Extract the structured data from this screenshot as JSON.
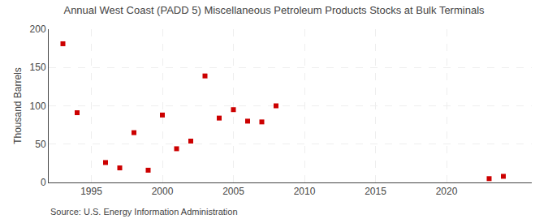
{
  "chart_data": {
    "type": "scatter",
    "title": "Annual West Coast (PADD 5) Miscellaneous Petroleum Products Stocks at Bulk Terminals",
    "ylabel": "Thousand Barrels",
    "annotations": [
      "Source: U.S. Energy Information Administration"
    ],
    "x": [
      1993,
      1994,
      1996,
      1997,
      1998,
      1999,
      2000,
      2001,
      2002,
      2003,
      2004,
      2005,
      2006,
      2007,
      2008,
      2023,
      2024
    ],
    "values": [
      181,
      91,
      26,
      19,
      65,
      16,
      88,
      44,
      54,
      139,
      84,
      95,
      80,
      79,
      100,
      5,
      8
    ],
    "color": "#cc0000",
    "marker": "square",
    "xlim": [
      1992.0,
      2026.0
    ],
    "xticks": [
      1995,
      2000,
      2005,
      2010,
      2015,
      2020
    ],
    "ylim": [
      0,
      200
    ],
    "yticks": [
      0,
      50,
      100,
      150,
      200
    ],
    "grid": true
  }
}
